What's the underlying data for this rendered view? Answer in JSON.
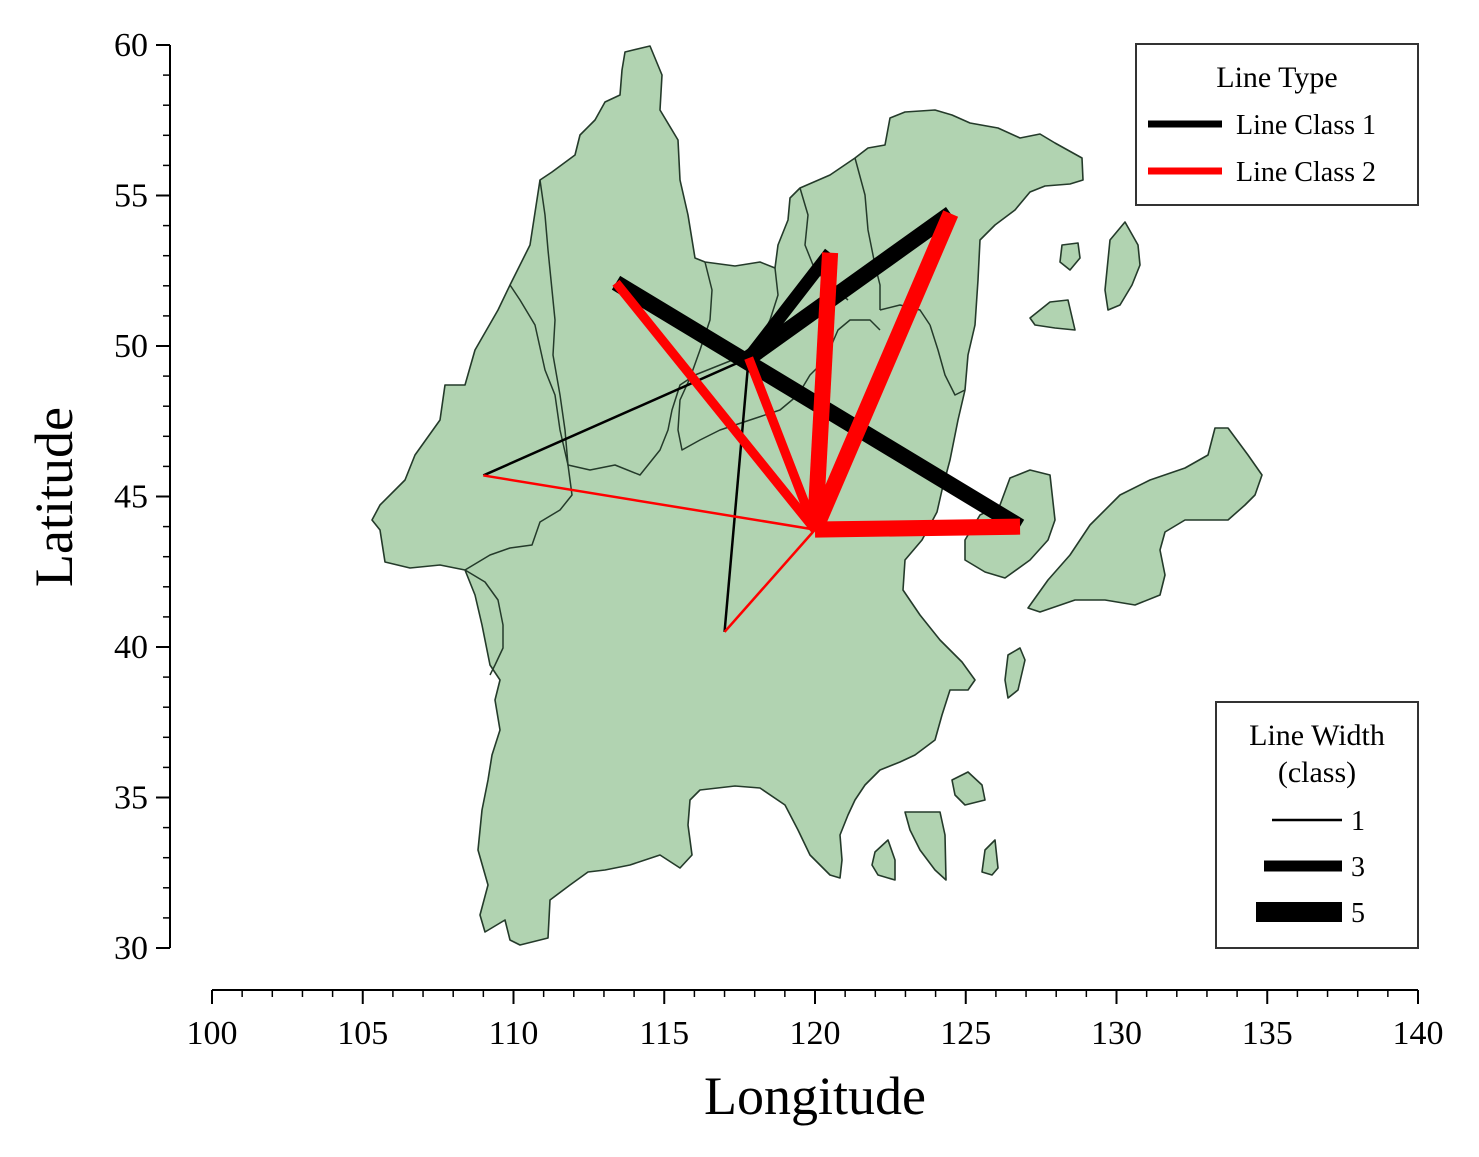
{
  "axes": {
    "xlabel": "Longitude",
    "ylabel": "Latitude",
    "xlim": [
      100,
      140
    ],
    "ylim": [
      30,
      60
    ],
    "x_ticks": [
      100,
      105,
      110,
      115,
      120,
      125,
      130,
      135,
      140
    ],
    "y_ticks": [
      30,
      35,
      40,
      45,
      50,
      55,
      60
    ]
  },
  "colors": {
    "land": "#b1d3b1",
    "land_edge": "#243a2a",
    "line_class_1": "#000000",
    "line_class_2": "#ff0000"
  },
  "legend_type": {
    "title": "Line Type",
    "position": "top-right",
    "entries": [
      {
        "label": "Line Class 1",
        "color": "#000000"
      },
      {
        "label": "Line Class 2",
        "color": "#ff0000"
      }
    ]
  },
  "legend_width": {
    "title_line1": "Line Width",
    "title_line2": "(class)",
    "position": "bottom-right",
    "entries": [
      {
        "label": "1",
        "width": 1
      },
      {
        "label": "3",
        "width": 3
      },
      {
        "label": "5",
        "width": 5
      }
    ]
  },
  "chart_data": {
    "type": "map",
    "nodes": [
      {
        "lon": 117.8,
        "lat": 49.6
      },
      {
        "lon": 120.0,
        "lat": 43.9
      },
      {
        "lon": 113.4,
        "lat": 52.1
      },
      {
        "lon": 109.0,
        "lat": 45.7
      },
      {
        "lon": 117.0,
        "lat": 40.5
      },
      {
        "lon": 120.5,
        "lat": 53.1
      },
      {
        "lon": 124.5,
        "lat": 54.4
      },
      {
        "lon": 126.8,
        "lat": 44.0
      }
    ],
    "edges": [
      {
        "from": [
          113.4,
          52.1
        ],
        "to": [
          126.8,
          44.0
        ],
        "class": 1,
        "width": 5
      },
      {
        "from": [
          117.8,
          49.6
        ],
        "to": [
          124.5,
          54.4
        ],
        "class": 1,
        "width": 5
      },
      {
        "from": [
          117.8,
          49.6
        ],
        "to": [
          120.5,
          53.1
        ],
        "class": 1,
        "width": 4
      },
      {
        "from": [
          109.0,
          45.7
        ],
        "to": [
          117.8,
          49.6
        ],
        "class": 1,
        "width": 1
      },
      {
        "from": [
          117.0,
          40.5
        ],
        "to": [
          117.8,
          49.6
        ],
        "class": 1,
        "width": 1
      },
      {
        "from": [
          120.0,
          43.9
        ],
        "to": [
          113.4,
          52.1
        ],
        "class": 2,
        "width": 3
      },
      {
        "from": [
          120.0,
          43.9
        ],
        "to": [
          117.8,
          49.6
        ],
        "class": 2,
        "width": 3
      },
      {
        "from": [
          120.0,
          43.9
        ],
        "to": [
          120.5,
          53.1
        ],
        "class": 2,
        "width": 5
      },
      {
        "from": [
          120.0,
          43.9
        ],
        "to": [
          124.5,
          54.4
        ],
        "class": 2,
        "width": 5
      },
      {
        "from": [
          120.0,
          43.9
        ],
        "to": [
          126.8,
          44.0
        ],
        "class": 2,
        "width": 5
      },
      {
        "from": [
          120.0,
          43.9
        ],
        "to": [
          109.0,
          45.7
        ],
        "class": 2,
        "width": 1
      },
      {
        "from": [
          120.0,
          43.9
        ],
        "to": [
          117.0,
          40.5
        ],
        "class": 2,
        "width": 1
      }
    ]
  }
}
